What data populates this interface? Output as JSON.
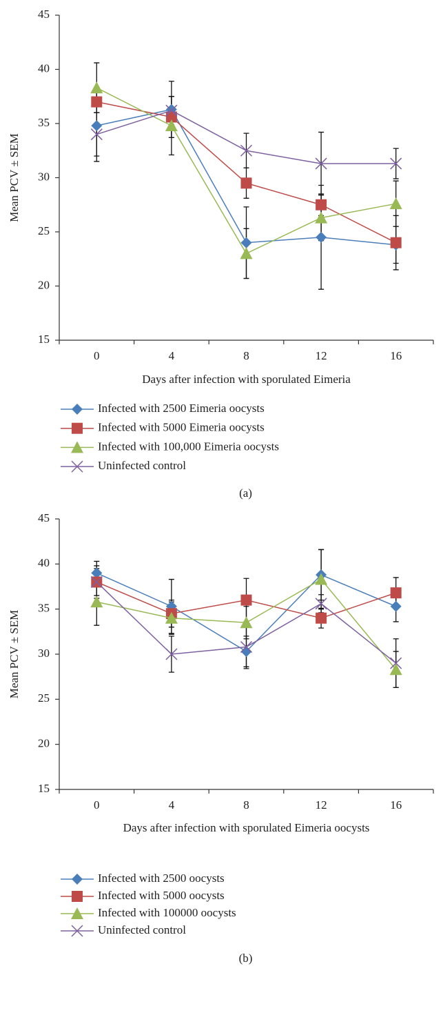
{
  "chart_data": [
    {
      "type": "line",
      "panel_label": "(a)",
      "x_label": "Days after infection with sporulated Eimeria",
      "y_label": "Mean PCV ± SEM",
      "categories": [
        "0",
        "4",
        "8",
        "12",
        "16"
      ],
      "ylim": [
        15,
        45
      ],
      "yticks": [
        15,
        20,
        25,
        30,
        35,
        40,
        45
      ],
      "series": [
        {
          "name": "Infected with 2500 Eimeria oocysts",
          "color": "#4a7ebb",
          "marker": "diamond",
          "values": [
            34.8,
            36.3,
            24.0,
            24.5,
            23.8
          ],
          "errors": [
            3.3,
            2.6,
            3.3,
            4.8,
            1.7
          ]
        },
        {
          "name": "Infected with 5000 Eimeria oocysts",
          "color": "#be4b48",
          "marker": "square",
          "values": [
            37.0,
            35.6,
            29.5,
            27.5,
            24.0
          ],
          "errors": [
            1.0,
            1.9,
            1.4,
            1.0,
            2.5
          ]
        },
        {
          "name": "Infected with 100,000 Eimeria oocysts",
          "color": "#98b954",
          "marker": "triangle",
          "values": [
            38.3,
            34.8,
            23.0,
            26.3,
            27.6
          ],
          "errors": [
            2.3,
            2.7,
            2.3,
            2.1,
            2.1
          ]
        },
        {
          "name": "Uninfected control",
          "color": "#7d60a0",
          "marker": "x",
          "values": [
            34.0,
            36.2,
            32.5,
            31.3,
            31.3
          ],
          "errors": [
            2.0,
            1.3,
            1.6,
            2.9,
            1.4
          ]
        }
      ]
    },
    {
      "type": "line",
      "panel_label": "(b)",
      "x_label": "Days after infection with sporulated Eimeria oocysts",
      "y_label": "Mean PCV ± SEM",
      "categories": [
        "0",
        "4",
        "8",
        "12",
        "16"
      ],
      "ylim": [
        15,
        45
      ],
      "yticks": [
        15,
        20,
        25,
        30,
        35,
        40,
        45
      ],
      "series": [
        {
          "name": "Infected with 2500 oocysts",
          "color": "#4a7ebb",
          "marker": "diamond",
          "values": [
            39.0,
            35.3,
            30.3,
            38.8,
            35.3
          ],
          "errors": [
            1.3,
            3.0,
            1.7,
            2.8,
            1.7
          ]
        },
        {
          "name": "Infected with 5000 oocysts",
          "color": "#be4b48",
          "marker": "square",
          "values": [
            38.0,
            34.5,
            36.0,
            34.0,
            36.8
          ],
          "errors": [
            1.8,
            1.5,
            2.4,
            1.1,
            1.7
          ]
        },
        {
          "name": "Infected with 100000 oocysts",
          "color": "#98b954",
          "marker": "triangle",
          "values": [
            35.8,
            34.0,
            33.5,
            38.3,
            28.3
          ],
          "errors": [
            2.6,
            1.8,
            1.8,
            3.3,
            2.0
          ]
        },
        {
          "name": "Uninfected control",
          "color": "#7d60a0",
          "marker": "x",
          "values": [
            38.0,
            30.0,
            30.8,
            35.6,
            29.0
          ],
          "errors": [
            1.5,
            2.0,
            2.4,
            1.0,
            2.7
          ]
        }
      ]
    }
  ]
}
